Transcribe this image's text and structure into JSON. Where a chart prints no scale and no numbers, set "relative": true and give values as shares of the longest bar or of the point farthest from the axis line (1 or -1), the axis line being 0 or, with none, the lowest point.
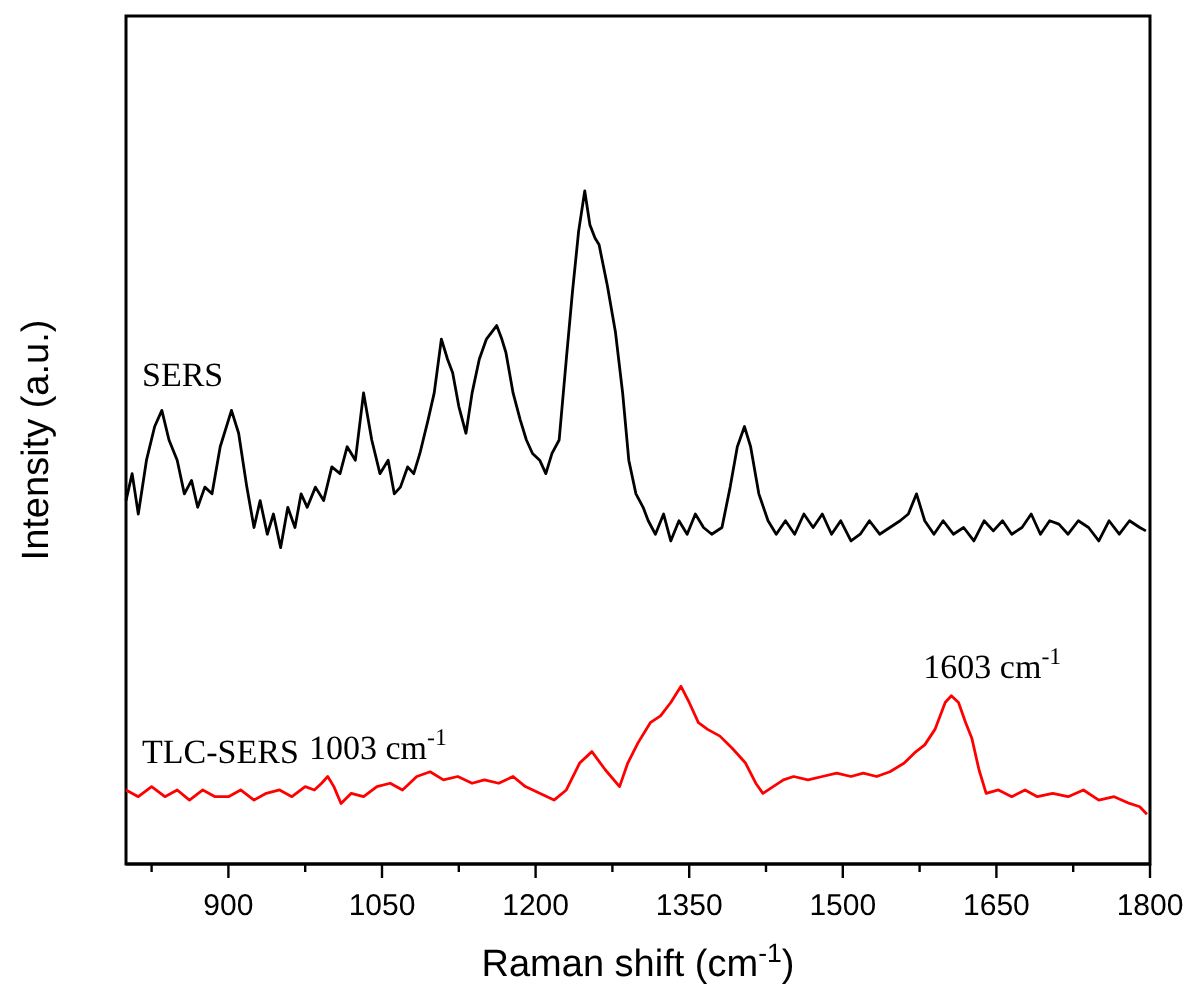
{
  "chart_data": {
    "type": "line",
    "xlabel": "Raman shift (cm$^{-1}$)",
    "ylabel": "Intensity (a.u.)",
    "relative": true,
    "tick_labels": "x",
    "grid": false,
    "legend": false,
    "marker": "none",
    "line_style": "solid",
    "xlim": [
      800,
      1800
    ],
    "xticks": [
      {
        "value": 825,
        "label": null
      },
      900,
      {
        "value": 975,
        "label": null
      },
      1050,
      {
        "value": 1125,
        "label": null
      },
      1200,
      {
        "value": 1275,
        "label": null
      },
      1350,
      {
        "value": 1425,
        "label": null
      },
      1500,
      {
        "value": 1575,
        "label": null
      },
      1650,
      {
        "value": 1725,
        "label": null
      },
      1800
    ],
    "series": [
      {
        "name": "SERS",
        "color": "#000000",
        "x": [
          800,
          806,
          812,
          820,
          828,
          835,
          842,
          850,
          857,
          864,
          870,
          877,
          884,
          892,
          903,
          910,
          918,
          925,
          931,
          938,
          944,
          951,
          958,
          965,
          971,
          977,
          985,
          993,
          1001,
          1009,
          1016,
          1024,
          1032,
          1040,
          1048,
          1056,
          1062,
          1068,
          1075,
          1081,
          1087,
          1095,
          1101,
          1108,
          1114,
          1119,
          1125,
          1132,
          1138,
          1145,
          1152,
          1162,
          1167,
          1171,
          1178,
          1185,
          1191,
          1197,
          1204,
          1210,
          1216,
          1223,
          1230,
          1236,
          1242,
          1248,
          1253,
          1258,
          1262,
          1270,
          1278,
          1285,
          1291,
          1298,
          1305,
          1310,
          1317,
          1325,
          1332,
          1340,
          1348,
          1356,
          1364,
          1372,
          1382,
          1390,
          1397,
          1404,
          1410,
          1418,
          1427,
          1435,
          1444,
          1453,
          1462,
          1471,
          1480,
          1489,
          1498,
          1508,
          1517,
          1526,
          1536,
          1546,
          1556,
          1564,
          1572,
          1580,
          1589,
          1598,
          1608,
          1618,
          1628,
          1638,
          1647,
          1656,
          1665,
          1675,
          1684,
          1693,
          1702,
          1711,
          1720,
          1730,
          1740,
          1750,
          1760,
          1770,
          1780,
          1790,
          1796
        ],
        "values": [
          0.54,
          0.58,
          0.52,
          0.6,
          0.65,
          0.674,
          0.63,
          0.6,
          0.55,
          0.57,
          0.53,
          0.56,
          0.55,
          0.62,
          0.674,
          0.64,
          0.56,
          0.5,
          0.54,
          0.49,
          0.52,
          0.47,
          0.53,
          0.5,
          0.55,
          0.53,
          0.56,
          0.54,
          0.59,
          0.58,
          0.62,
          0.6,
          0.7,
          0.63,
          0.58,
          0.6,
          0.55,
          0.56,
          0.59,
          0.58,
          0.61,
          0.66,
          0.7,
          0.78,
          0.75,
          0.73,
          0.68,
          0.64,
          0.7,
          0.75,
          0.78,
          0.8,
          0.78,
          0.76,
          0.7,
          0.66,
          0.63,
          0.61,
          0.6,
          0.58,
          0.61,
          0.63,
          0.75,
          0.85,
          0.94,
          1,
          0.95,
          0.93,
          0.92,
          0.86,
          0.79,
          0.7,
          0.6,
          0.55,
          0.53,
          0.51,
          0.49,
          0.52,
          0.48,
          0.51,
          0.49,
          0.52,
          0.5,
          0.49,
          0.5,
          0.56,
          0.62,
          0.65,
          0.62,
          0.55,
          0.51,
          0.49,
          0.51,
          0.49,
          0.52,
          0.5,
          0.52,
          0.49,
          0.51,
          0.48,
          0.49,
          0.51,
          0.49,
          0.5,
          0.51,
          0.52,
          0.55,
          0.51,
          0.49,
          0.51,
          0.49,
          0.5,
          0.48,
          0.51,
          0.495,
          0.51,
          0.49,
          0.5,
          0.52,
          0.49,
          0.51,
          0.505,
          0.49,
          0.51,
          0.5,
          0.48,
          0.51,
          0.49,
          0.51,
          0.5,
          0.495
        ]
      },
      {
        "name": "TLC-SERS",
        "color": "#ff0000",
        "x": [
          800,
          812,
          825,
          838,
          850,
          862,
          875,
          887,
          900,
          912,
          925,
          937,
          950,
          962,
          975,
          984,
          991,
          997,
          1003,
          1010,
          1020,
          1032,
          1045,
          1058,
          1070,
          1084,
          1097,
          1110,
          1124,
          1138,
          1150,
          1164,
          1178,
          1190,
          1204,
          1218,
          1230,
          1243,
          1255,
          1268,
          1282,
          1290,
          1300,
          1312,
          1322,
          1332,
          1342,
          1350,
          1359,
          1368,
          1380,
          1392,
          1405,
          1415,
          1422,
          1432,
          1442,
          1452,
          1466,
          1480,
          1494,
          1508,
          1520,
          1533,
          1546,
          1560,
          1570,
          1580,
          1590,
          1600,
          1606,
          1613,
          1620,
          1626,
          1633,
          1640,
          1652,
          1665,
          1678,
          1690,
          1705,
          1720,
          1735,
          1750,
          1765,
          1780,
          1790,
          1797
        ],
        "values": [
          0.11,
          0.1,
          0.115,
          0.1,
          0.11,
          0.095,
          0.11,
          0.1,
          0.1,
          0.11,
          0.095,
          0.105,
          0.11,
          0.1,
          0.115,
          0.11,
          0.12,
          0.13,
          0.115,
          0.09,
          0.105,
          0.1,
          0.115,
          0.12,
          0.11,
          0.13,
          0.137,
          0.125,
          0.13,
          0.12,
          0.125,
          0.12,
          0.13,
          0.115,
          0.105,
          0.095,
          0.11,
          0.15,
          0.167,
          0.14,
          0.115,
          0.15,
          0.18,
          0.21,
          0.22,
          0.24,
          0.264,
          0.24,
          0.21,
          0.2,
          0.19,
          0.172,
          0.15,
          0.12,
          0.105,
          0.115,
          0.125,
          0.13,
          0.125,
          0.13,
          0.135,
          0.13,
          0.135,
          0.13,
          0.137,
          0.15,
          0.165,
          0.177,
          0.2,
          0.24,
          0.25,
          0.24,
          0.21,
          0.187,
          0.14,
          0.105,
          0.11,
          0.1,
          0.11,
          0.1,
          0.105,
          0.1,
          0.11,
          0.095,
          0.1,
          0.09,
          0.085,
          0.074
        ]
      }
    ],
    "annotations": [
      {
        "text": "1003 cm$^{-1}$",
        "x": 1003,
        "y": 0.13
      },
      {
        "text": "1603 cm$^{-1}$",
        "x": 1603,
        "y": 0.25
      }
    ]
  }
}
